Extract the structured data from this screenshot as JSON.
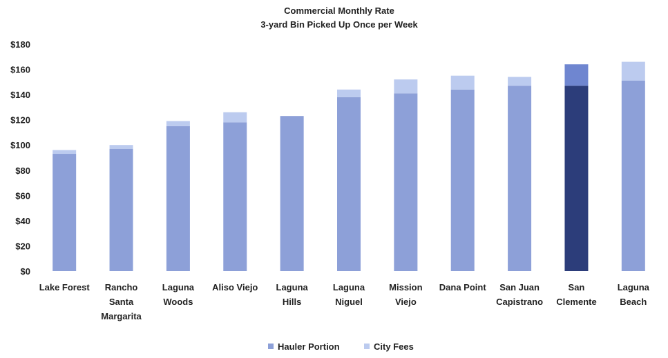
{
  "chart_data": {
    "type": "bar",
    "stacked": true,
    "title_lines": [
      "Commercial Monthly Rate",
      "3-yard Bin Picked Up Once per Week"
    ],
    "categories": [
      [
        "Lake Forest"
      ],
      [
        "Rancho",
        "Santa",
        "Margarita"
      ],
      [
        "Laguna",
        "Woods"
      ],
      [
        "Aliso Viejo"
      ],
      [
        "Laguna",
        "Hills"
      ],
      [
        "Laguna",
        "Niguel"
      ],
      [
        "Mission",
        "Viejo"
      ],
      [
        "Dana Point"
      ],
      [
        "San Juan",
        "Capistrano"
      ],
      [
        "San",
        "Clemente"
      ],
      [
        "Laguna",
        "Beach"
      ]
    ],
    "series": [
      {
        "name": "Hauler Portion",
        "color": "#8da0d8",
        "values": [
          93,
          97,
          115,
          118,
          123,
          138,
          141,
          144,
          147,
          147,
          151
        ]
      },
      {
        "name": "City Fees",
        "color": "#bccbef",
        "values": [
          3,
          3,
          4,
          8,
          0,
          6,
          11,
          11,
          7,
          17,
          15
        ]
      }
    ],
    "highlight": {
      "index": 9,
      "colors": [
        "#2c3d7a",
        "#6f86d0"
      ]
    },
    "yaxis": {
      "min": 0,
      "max": 180,
      "step": 20,
      "tick_labels": [
        "$0",
        "$20",
        "$40",
        "$60",
        "$80",
        "$100",
        "$120",
        "$140",
        "$160",
        "$180"
      ]
    },
    "grid": false,
    "legend": {
      "position": "bottom",
      "items": [
        "Hauler Portion",
        "City Fees"
      ]
    }
  }
}
